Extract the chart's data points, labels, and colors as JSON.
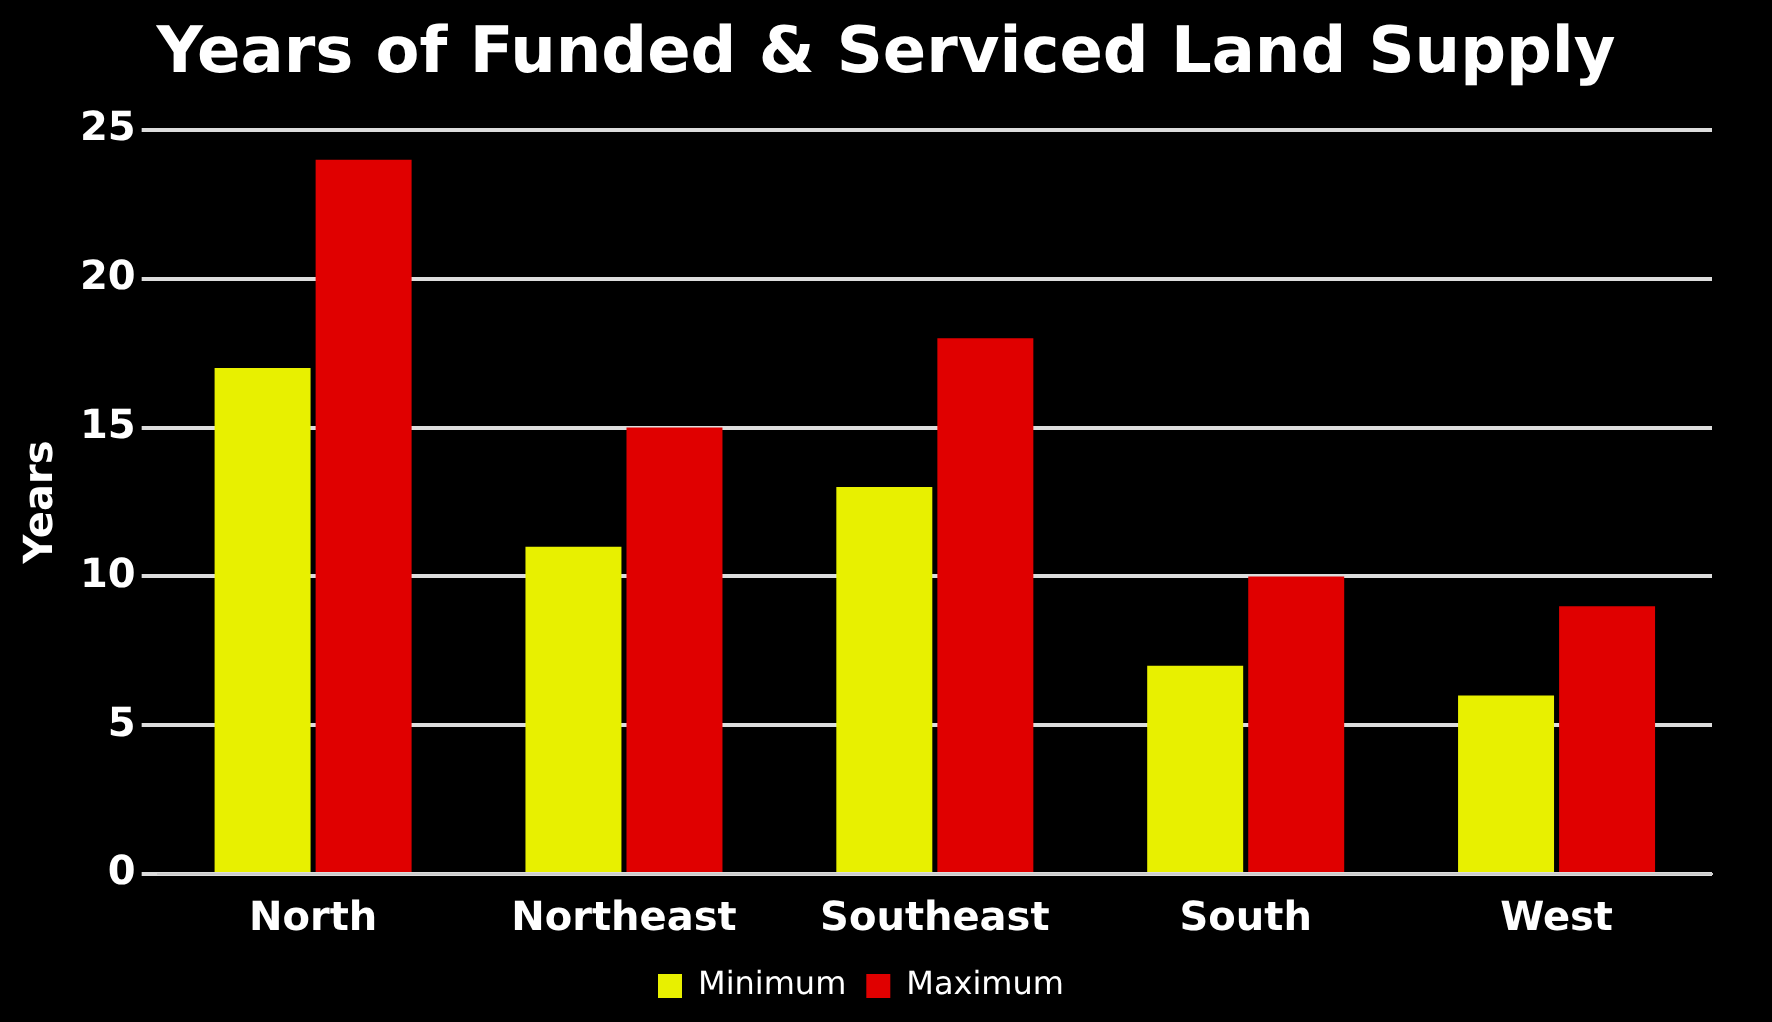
{
  "chart_data": {
    "type": "bar",
    "title": "Years of Funded & Serviced Land Supply",
    "ylabel": "Years",
    "categories": [
      "North",
      "Northeast",
      "Southeast",
      "South",
      "West"
    ],
    "series": [
      {
        "name": "Minimum",
        "color": "#e8f000",
        "values": [
          17,
          11,
          13,
          7,
          6
        ]
      },
      {
        "name": "Maximum",
        "color": "#e00000",
        "values": [
          24,
          15,
          18,
          10,
          9
        ]
      }
    ],
    "ylim": [
      0,
      25
    ],
    "yticks": [
      0,
      5,
      10,
      15,
      20,
      25
    ],
    "grid": "y",
    "legend": "bottom"
  }
}
